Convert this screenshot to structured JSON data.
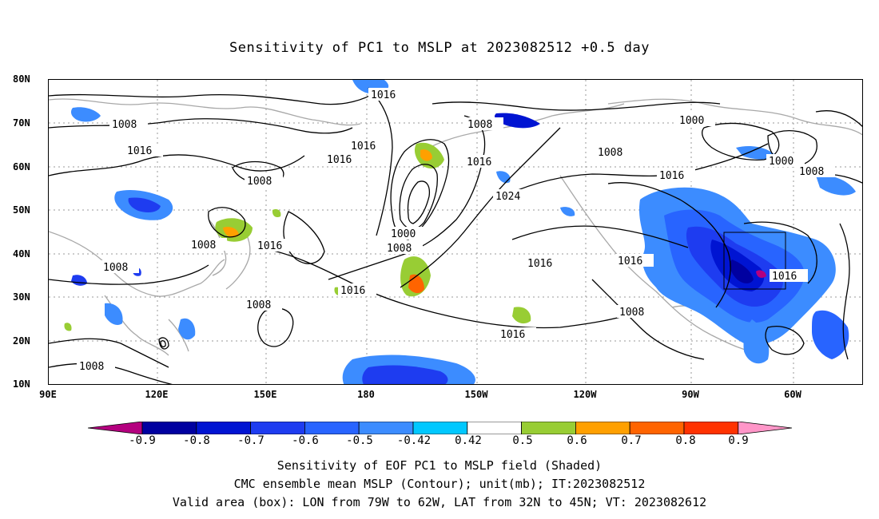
{
  "title": "Sensitivity of PC1 to MSLP at 2023082512 +0.5 day",
  "lat_labels": [
    "80N",
    "70N",
    "60N",
    "50N",
    "40N",
    "30N",
    "20N",
    "10N"
  ],
  "lon_labels": [
    "90E",
    "120E",
    "150E",
    "180",
    "150W",
    "120W",
    "90W",
    "60W"
  ],
  "contour_labels": [
    "1016",
    "1008",
    "1016",
    "1016",
    "1016",
    "1008",
    "1008",
    "1016",
    "1024",
    "1000",
    "1008",
    "1016",
    "1016",
    "1016",
    "1008",
    "1016",
    "1016",
    "1016",
    "1008",
    "1008",
    "1000",
    "1000",
    "1008",
    "1008",
    "1016",
    "1008",
    "1008"
  ],
  "colorbar": {
    "labels": [
      "-0.9",
      "-0.8",
      "-0.7",
      "-0.6",
      "-0.5",
      "-0.42",
      "0.42",
      "0.5",
      "0.6",
      "0.7",
      "0.8",
      "0.9"
    ],
    "colors": [
      "#b4007f",
      "#0000a0",
      "#0014d2",
      "#1e3cf0",
      "#2864ff",
      "#3c8cff",
      "#00c8ff",
      "#ffffff",
      "#98cd34",
      "#ffa000",
      "#ff6400",
      "#ff3200",
      "#ff0000",
      "#ff96c8"
    ]
  },
  "captions": [
    "Sensitivity of EOF PC1 to MSLP field (Shaded)",
    "CMC ensemble mean MSLP (Contour); unit(mb); IT:2023082512",
    "Valid area (box): LON from 79W to 62W, LAT from 32N to 45N; VT: 2023082612"
  ]
}
